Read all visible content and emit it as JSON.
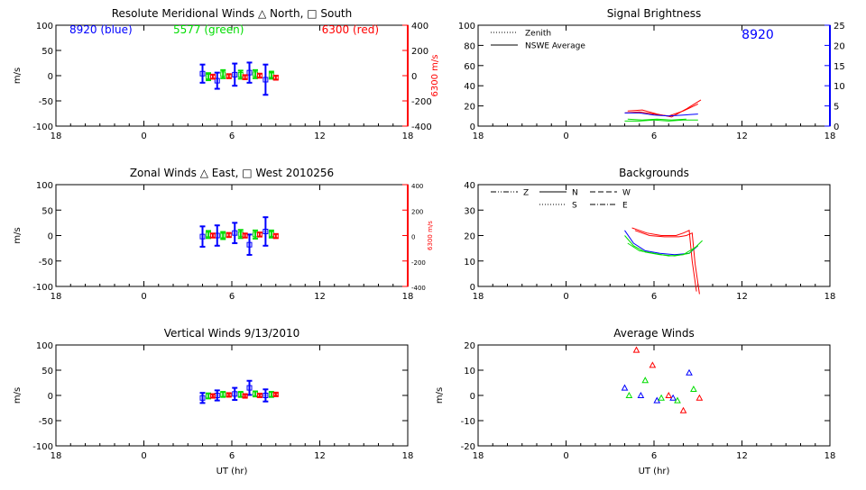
{
  "chart_data": [
    {
      "id": "meridional",
      "type": "scatter",
      "title": "Resolute Meridional Winds △ North, □ South",
      "xlabel": "",
      "ylabel": "m/s",
      "y2label": "6300 m/s",
      "xlim": [
        18,
        42
      ],
      "x_ticks": [
        18,
        24,
        30,
        36,
        42
      ],
      "x_tick_labels": [
        "18",
        "0",
        "6",
        "12",
        "18"
      ],
      "ylim": [
        -100,
        100
      ],
      "y_ticks": [
        100,
        50,
        0,
        -50,
        -100
      ],
      "y2lim": [
        -400,
        400
      ],
      "y2_ticks": [
        400,
        200,
        0,
        -200,
        -400
      ],
      "annotations": [
        {
          "text": "8920 (blue)",
          "color": "#0000ff"
        },
        {
          "text": "5577 (green)",
          "color": "#00dd00"
        },
        {
          "text": "6300 (red)",
          "color": "#ff0000"
        }
      ],
      "series": [
        {
          "color": "#0000ff",
          "points": [
            [
              28.0,
              4,
              18
            ],
            [
              29.0,
              -10,
              16
            ],
            [
              30.2,
              2,
              22
            ],
            [
              31.2,
              6,
              20
            ],
            [
              32.3,
              -8,
              30
            ]
          ]
        },
        {
          "color": "#00dd00",
          "points": [
            [
              28.4,
              -2,
              7
            ],
            [
              29.4,
              3,
              8
            ],
            [
              30.6,
              2,
              8
            ],
            [
              31.6,
              3,
              8
            ],
            [
              32.7,
              1,
              7
            ]
          ]
        },
        {
          "color": "#ff0000",
          "points": [
            [
              28.7,
              -2,
              4
            ],
            [
              29.8,
              -1,
              4
            ],
            [
              30.9,
              -3,
              4
            ],
            [
              31.9,
              0,
              4
            ],
            [
              33.0,
              -4,
              4
            ]
          ]
        }
      ]
    },
    {
      "id": "zonal",
      "type": "scatter",
      "title": "Zonal Winds △ East, □ West 2010256",
      "xlabel": "",
      "ylabel": "m/s",
      "y2label": "6300 m/s",
      "xlim": [
        18,
        42
      ],
      "x_ticks": [
        18,
        24,
        30,
        36,
        42
      ],
      "x_tick_labels": [
        "18",
        "0",
        "6",
        "12",
        "18"
      ],
      "ylim": [
        -100,
        100
      ],
      "y_ticks": [
        100,
        50,
        0,
        -50,
        -100
      ],
      "y2lim": [
        -400,
        400
      ],
      "y2_ticks": [
        400,
        200,
        0,
        -200,
        -400
      ],
      "annotations": [],
      "series": [
        {
          "color": "#0000ff",
          "points": [
            [
              28.0,
              -2,
              20
            ],
            [
              29.0,
              0,
              20
            ],
            [
              30.2,
              5,
              20
            ],
            [
              31.2,
              -18,
              20
            ],
            [
              32.3,
              8,
              28
            ]
          ]
        },
        {
          "color": "#00dd00",
          "points": [
            [
              28.4,
              2,
              7
            ],
            [
              29.4,
              0,
              7
            ],
            [
              30.6,
              3,
              8
            ],
            [
              31.6,
              2,
              8
            ],
            [
              32.7,
              3,
              7
            ]
          ]
        },
        {
          "color": "#ff0000",
          "points": [
            [
              28.7,
              0,
              4
            ],
            [
              29.8,
              1,
              4
            ],
            [
              30.9,
              0,
              4
            ],
            [
              31.9,
              2,
              4
            ],
            [
              33.0,
              -1,
              4
            ]
          ]
        }
      ]
    },
    {
      "id": "vertical",
      "type": "scatter",
      "title": "Vertical Winds 9/13/2010",
      "xlabel": "UT (hr)",
      "ylabel": "m/s",
      "xlim": [
        18,
        42
      ],
      "x_ticks": [
        18,
        24,
        30,
        36,
        42
      ],
      "x_tick_labels": [
        "18",
        "0",
        "6",
        "12",
        "18"
      ],
      "ylim": [
        -100,
        100
      ],
      "y_ticks": [
        100,
        50,
        0,
        -50,
        -100
      ],
      "annotations": [],
      "series": [
        {
          "color": "#0000ff",
          "points": [
            [
              28.0,
              -5,
              10
            ],
            [
              29.0,
              0,
              10
            ],
            [
              30.2,
              3,
              12
            ],
            [
              31.2,
              15,
              14
            ],
            [
              32.3,
              0,
              12
            ]
          ]
        },
        {
          "color": "#00dd00",
          "points": [
            [
              28.4,
              -1,
              5
            ],
            [
              29.4,
              2,
              5
            ],
            [
              30.6,
              2,
              5
            ],
            [
              31.6,
              3,
              5
            ],
            [
              32.7,
              2,
              5
            ]
          ]
        },
        {
          "color": "#ff0000",
          "points": [
            [
              28.7,
              -1,
              3
            ],
            [
              29.8,
              1,
              3
            ],
            [
              30.9,
              -1,
              3
            ],
            [
              31.9,
              0,
              3
            ],
            [
              33.0,
              2,
              3
            ]
          ]
        }
      ]
    },
    {
      "id": "brightness",
      "type": "line",
      "title": "Signal Brightness",
      "xlabel": "",
      "ylabel": "",
      "xlim": [
        18,
        42
      ],
      "x_ticks": [
        18,
        24,
        30,
        36,
        42
      ],
      "x_tick_labels": [
        "18",
        "0",
        "6",
        "12",
        "18"
      ],
      "ylim": [
        0,
        100
      ],
      "y_ticks": [
        100,
        80,
        60,
        40,
        20,
        0
      ],
      "y2lim": [
        0,
        25
      ],
      "y2_ticks": [
        25,
        20,
        15,
        10,
        5,
        0
      ],
      "y2_color": "#0000ff",
      "legend": [
        {
          "label": "Zenith",
          "style": "dotted"
        },
        {
          "label": "NSWE Average",
          "style": "solid"
        }
      ],
      "annotations": [
        {
          "text": "8920",
          "color": "#0000ff"
        }
      ],
      "series": [
        {
          "color": "#ff0000",
          "x": [
            28.0,
            29.0,
            30.0,
            31.0,
            32.0,
            33.0
          ],
          "y": [
            13,
            14,
            12,
            10,
            15,
            22
          ]
        },
        {
          "color": "#ff0000",
          "x": [
            28.2,
            29.2,
            30.2,
            31.2,
            32.2,
            33.2
          ],
          "y": [
            15,
            16,
            12,
            9,
            17,
            26
          ]
        },
        {
          "color": "#0000ff",
          "x": [
            28.0,
            29.0,
            30.0,
            31.0,
            32.0,
            33.0
          ],
          "y": [
            13,
            13,
            11,
            10,
            11,
            12
          ]
        },
        {
          "color": "#00dd00",
          "x": [
            28.0,
            29.0,
            30.0,
            31.0,
            32.0,
            33.0
          ],
          "y": [
            5,
            5,
            6,
            5,
            6,
            6
          ]
        },
        {
          "color": "#00dd00",
          "x": [
            28.2,
            29.2,
            30.2,
            31.2,
            32.2
          ],
          "y": [
            7,
            6,
            7,
            6,
            7
          ]
        }
      ]
    },
    {
      "id": "backgrounds",
      "type": "line",
      "title": "Backgrounds",
      "xlabel": "",
      "ylabel": "",
      "xlim": [
        18,
        42
      ],
      "x_ticks": [
        18,
        24,
        30,
        36,
        42
      ],
      "x_tick_labels": [
        "18",
        "0",
        "6",
        "12",
        "18"
      ],
      "ylim": [
        0,
        40
      ],
      "y_ticks": [
        40,
        30,
        20,
        10,
        0
      ],
      "legend": [
        {
          "label": "Z",
          "style": "dashdotdot"
        },
        {
          "label": "N",
          "style": "solid"
        },
        {
          "label": "W",
          "style": "dashed"
        },
        {
          "label": "S",
          "style": "dotted"
        },
        {
          "label": "E",
          "style": "dashdot"
        }
      ],
      "annotations": [],
      "series": [
        {
          "color": "#ff0000",
          "x": [
            28.5,
            29.5,
            30.5,
            31.5,
            32.0,
            32.4,
            32.6,
            32.9
          ],
          "y": [
            23,
            21,
            20,
            20,
            21,
            22,
            10,
            -2
          ]
        },
        {
          "color": "#ff0000",
          "x": [
            28.7,
            29.7,
            30.7,
            31.7,
            32.2,
            32.6,
            32.8,
            33.1
          ],
          "y": [
            22,
            20,
            19.5,
            19.5,
            20,
            21,
            9,
            -3
          ]
        },
        {
          "color": "#0000ff",
          "x": [
            28.0,
            28.6,
            29.4,
            30.4,
            31.4,
            32.4,
            33.0
          ],
          "y": [
            22,
            17,
            14,
            13,
            12.5,
            13,
            16
          ]
        },
        {
          "color": "#00dd00",
          "x": [
            28.0,
            28.6,
            29.4,
            30.4,
            31.4,
            32.4,
            33.3
          ],
          "y": [
            20,
            16,
            13.5,
            12.5,
            12,
            13,
            18
          ]
        },
        {
          "color": "#00dd00",
          "x": [
            28.2,
            29.0,
            30.0,
            31.0,
            32.0,
            33.0
          ],
          "y": [
            17,
            14,
            13,
            12,
            12.5,
            16
          ]
        }
      ]
    },
    {
      "id": "avgwinds",
      "type": "scatter",
      "title": "Average Winds",
      "xlabel": "UT (hr)",
      "ylabel": "m/s",
      "xlim": [
        18,
        42
      ],
      "x_ticks": [
        18,
        24,
        30,
        36,
        42
      ],
      "x_tick_labels": [
        "18",
        "0",
        "6",
        "12",
        "18"
      ],
      "ylim": [
        -20,
        20
      ],
      "y_ticks": [
        20,
        10,
        0,
        -10,
        -20
      ],
      "marker": "triangle",
      "annotations": [],
      "series": [
        {
          "color": "#0000ff",
          "x": [
            28.0,
            29.1,
            30.2,
            31.3,
            32.4
          ],
          "y": [
            3,
            0,
            -2,
            -1,
            9
          ]
        },
        {
          "color": "#00dd00",
          "x": [
            28.3,
            29.4,
            30.5,
            31.6,
            32.7
          ],
          "y": [
            0,
            6,
            -1,
            -2,
            2.5
          ]
        },
        {
          "color": "#ff0000",
          "x": [
            28.8,
            29.9,
            31.0,
            32.0,
            33.1
          ],
          "y": [
            18,
            12,
            0,
            -6,
            -1
          ]
        }
      ]
    }
  ]
}
